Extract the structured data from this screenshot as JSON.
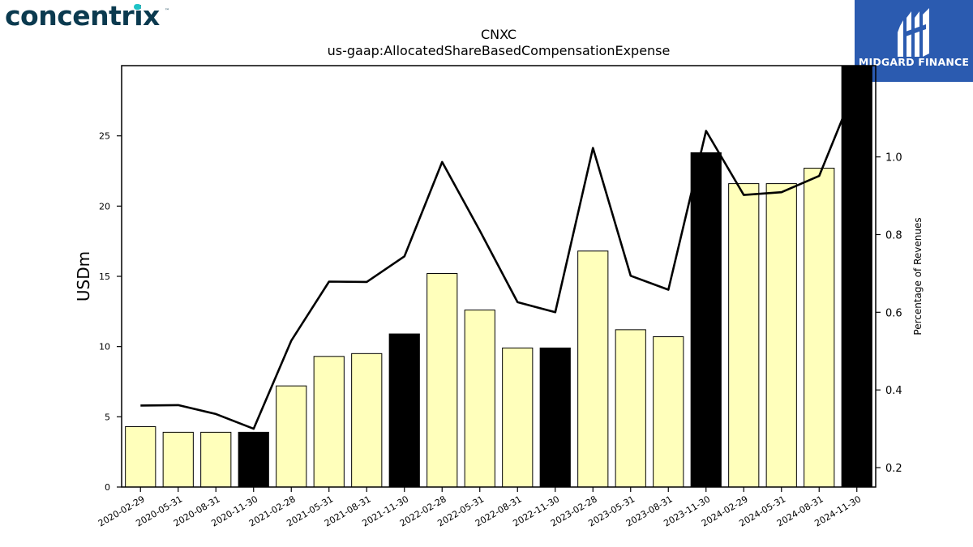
{
  "logos": {
    "left_brand": "concentrix",
    "right_brand": "MIDGARD FINANCE"
  },
  "colors": {
    "bar_fill": "#ffffbb",
    "bar_highlight": "#000000",
    "line": "#000000",
    "brand_left": "#0b3a4f",
    "brand_left_accent": "#1fc3c6",
    "brand_right_bg": "#2b5bb0"
  },
  "chart_data": {
    "type": "bar",
    "title": "CNXC",
    "subtitle": "us-gaap:AllocatedShareBasedCompensationExpense",
    "ylabel": "USDm",
    "y2label": "Percentage of Revenues",
    "ylim": [
      0,
      30
    ],
    "y2lim": [
      0.15,
      1.235
    ],
    "yticks": [
      0,
      5,
      10,
      15,
      20,
      25
    ],
    "y2ticks": [
      0.2,
      0.4,
      0.6,
      0.8,
      1.0
    ],
    "y2ticklabels": [
      "0.2",
      "0.4",
      "0.6",
      "0.8",
      "1.0"
    ],
    "categories": [
      "2020-02-29",
      "2020-05-31",
      "2020-08-31",
      "2020-11-30",
      "2021-02-28",
      "2021-05-31",
      "2021-08-31",
      "2021-11-30",
      "2022-02-28",
      "2022-05-31",
      "2022-08-31",
      "2022-11-30",
      "2023-02-28",
      "2023-05-31",
      "2023-08-31",
      "2023-11-30",
      "2024-02-29",
      "2024-05-31",
      "2024-08-31",
      "2024-11-30"
    ],
    "series": [
      {
        "type": "bar",
        "axis": "left",
        "values": [
          4.3,
          3.9,
          3.9,
          3.9,
          7.2,
          9.3,
          9.5,
          10.9,
          15.2,
          12.6,
          9.9,
          9.9,
          16.8,
          11.2,
          10.7,
          23.8,
          21.6,
          21.6,
          22.7,
          30.2
        ],
        "highlight": [
          false,
          false,
          false,
          true,
          false,
          false,
          false,
          true,
          false,
          false,
          false,
          true,
          false,
          false,
          false,
          true,
          false,
          false,
          false,
          true
        ]
      },
      {
        "type": "line",
        "axis": "right",
        "values": [
          0.36,
          0.361,
          0.338,
          0.3,
          0.527,
          0.679,
          0.678,
          0.744,
          0.987,
          0.81,
          0.626,
          0.6,
          1.023,
          0.694,
          0.658,
          1.067,
          0.902,
          0.909,
          0.951,
          1.19
        ]
      }
    ],
    "grid": false,
    "legend": "none"
  }
}
